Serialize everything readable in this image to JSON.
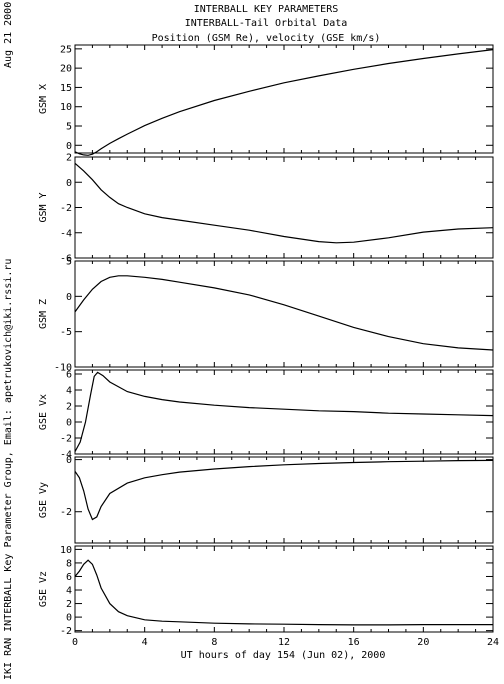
{
  "header": {
    "line1": "INTERBALL KEY PARAMETERS",
    "line2": "INTERBALL-Tail Orbital Data",
    "line3": "Position (GSM Re), velocity (GSE km/s)"
  },
  "side_date": "Aug 21 2000",
  "side_credit": "IKI RAN INTERBALL Key Parameter Group, Email: apetrukovich@iki.rssi.ru",
  "chart_data": [
    {
      "type": "line",
      "ylabel": "GSM X",
      "ylim": [
        -2,
        26
      ],
      "yticks": [
        25,
        20,
        15,
        10,
        5,
        0
      ],
      "xlim": [
        0,
        24
      ],
      "x": [
        0,
        0.25,
        0.5,
        0.75,
        1,
        1.25,
        1.5,
        2,
        2.5,
        3,
        4,
        5,
        6,
        8,
        10,
        12,
        14,
        16,
        18,
        20,
        22,
        24
      ],
      "y": [
        -1.7,
        -2.2,
        -2.5,
        -2.6,
        -2.3,
        -1.7,
        -0.9,
        0.5,
        1.7,
        2.9,
        5.1,
        7.0,
        8.7,
        11.6,
        14.0,
        16.2,
        18.0,
        19.7,
        21.2,
        22.5,
        23.7,
        24.8
      ]
    },
    {
      "type": "line",
      "ylabel": "GSM Y",
      "ylim": [
        -6,
        2
      ],
      "yticks": [
        2,
        0,
        -2,
        -4,
        -6
      ],
      "xlim": [
        0,
        24
      ],
      "x": [
        0,
        0.5,
        1,
        1.5,
        2,
        2.5,
        3,
        4,
        5,
        6,
        8,
        10,
        12,
        14,
        15,
        16,
        18,
        20,
        22,
        24
      ],
      "y": [
        1.5,
        0.9,
        0.2,
        -0.6,
        -1.2,
        -1.7,
        -2.0,
        -2.5,
        -2.8,
        -3.0,
        -3.4,
        -3.8,
        -4.3,
        -4.7,
        -4.8,
        -4.75,
        -4.4,
        -3.95,
        -3.7,
        -3.6
      ]
    },
    {
      "type": "line",
      "ylabel": "GSM Z",
      "ylim": [
        -10,
        5
      ],
      "yticks": [
        5,
        0,
        -5,
        -10
      ],
      "xlim": [
        0,
        24
      ],
      "x": [
        0,
        0.5,
        1,
        1.5,
        2,
        2.5,
        3,
        4,
        5,
        6,
        8,
        10,
        12,
        14,
        16,
        18,
        20,
        22,
        24
      ],
      "y": [
        -2.2,
        -0.5,
        1.0,
        2.1,
        2.7,
        2.9,
        2.9,
        2.7,
        2.4,
        2.0,
        1.2,
        0.2,
        -1.2,
        -2.8,
        -4.4,
        -5.7,
        -6.7,
        -7.3,
        -7.6
      ]
    },
    {
      "type": "line",
      "ylabel": "GSE Vx",
      "ylim": [
        -4,
        6.5
      ],
      "yticks": [
        6,
        4,
        2,
        0,
        -2,
        -4
      ],
      "xlim": [
        0,
        24
      ],
      "x": [
        0,
        0.3,
        0.6,
        0.9,
        1.1,
        1.3,
        1.6,
        2,
        3,
        4,
        5,
        6,
        8,
        10,
        12,
        14,
        16,
        18,
        20,
        22,
        24
      ],
      "y": [
        -3.7,
        -2.5,
        0.0,
        3.5,
        5.7,
        6.2,
        5.8,
        5.0,
        3.8,
        3.2,
        2.8,
        2.5,
        2.1,
        1.8,
        1.6,
        1.4,
        1.3,
        1.1,
        1.0,
        0.9,
        0.8
      ]
    },
    {
      "type": "line",
      "ylabel": "GSE Vy",
      "ylim": [
        -3.2,
        0.1
      ],
      "yticks": [
        0,
        -2
      ],
      "xlim": [
        0,
        24
      ],
      "x": [
        0,
        0.25,
        0.5,
        0.75,
        1,
        1.25,
        1.5,
        2,
        3,
        4,
        5,
        6,
        8,
        10,
        12,
        14,
        16,
        18,
        20,
        22,
        24
      ],
      "y": [
        -0.45,
        -0.7,
        -1.2,
        -1.9,
        -2.3,
        -2.2,
        -1.8,
        -1.3,
        -0.9,
        -0.7,
        -0.58,
        -0.48,
        -0.36,
        -0.27,
        -0.2,
        -0.15,
        -0.11,
        -0.08,
        -0.06,
        -0.04,
        -0.03
      ]
    },
    {
      "type": "line",
      "ylabel": "GSE Vz",
      "ylim": [
        -2.2,
        10.5
      ],
      "yticks": [
        10,
        8,
        6,
        4,
        2,
        0,
        -2
      ],
      "xlim": [
        0,
        24
      ],
      "x": [
        0,
        0.25,
        0.5,
        0.75,
        1,
        1.25,
        1.5,
        2,
        2.5,
        3,
        4,
        5,
        6,
        8,
        10,
        12,
        14,
        16,
        18,
        20,
        22,
        24
      ],
      "y": [
        6.0,
        6.8,
        7.8,
        8.4,
        7.8,
        6.2,
        4.3,
        2.0,
        0.8,
        0.2,
        -0.4,
        -0.6,
        -0.7,
        -0.9,
        -1.0,
        -1.05,
        -1.1,
        -1.15,
        -1.15,
        -1.1,
        -1.1,
        -1.1
      ]
    }
  ],
  "x_axis": {
    "label": "UT hours of day 154 (Jun 02), 2000",
    "ticks": [
      0,
      4,
      8,
      12,
      16,
      20,
      24
    ]
  }
}
